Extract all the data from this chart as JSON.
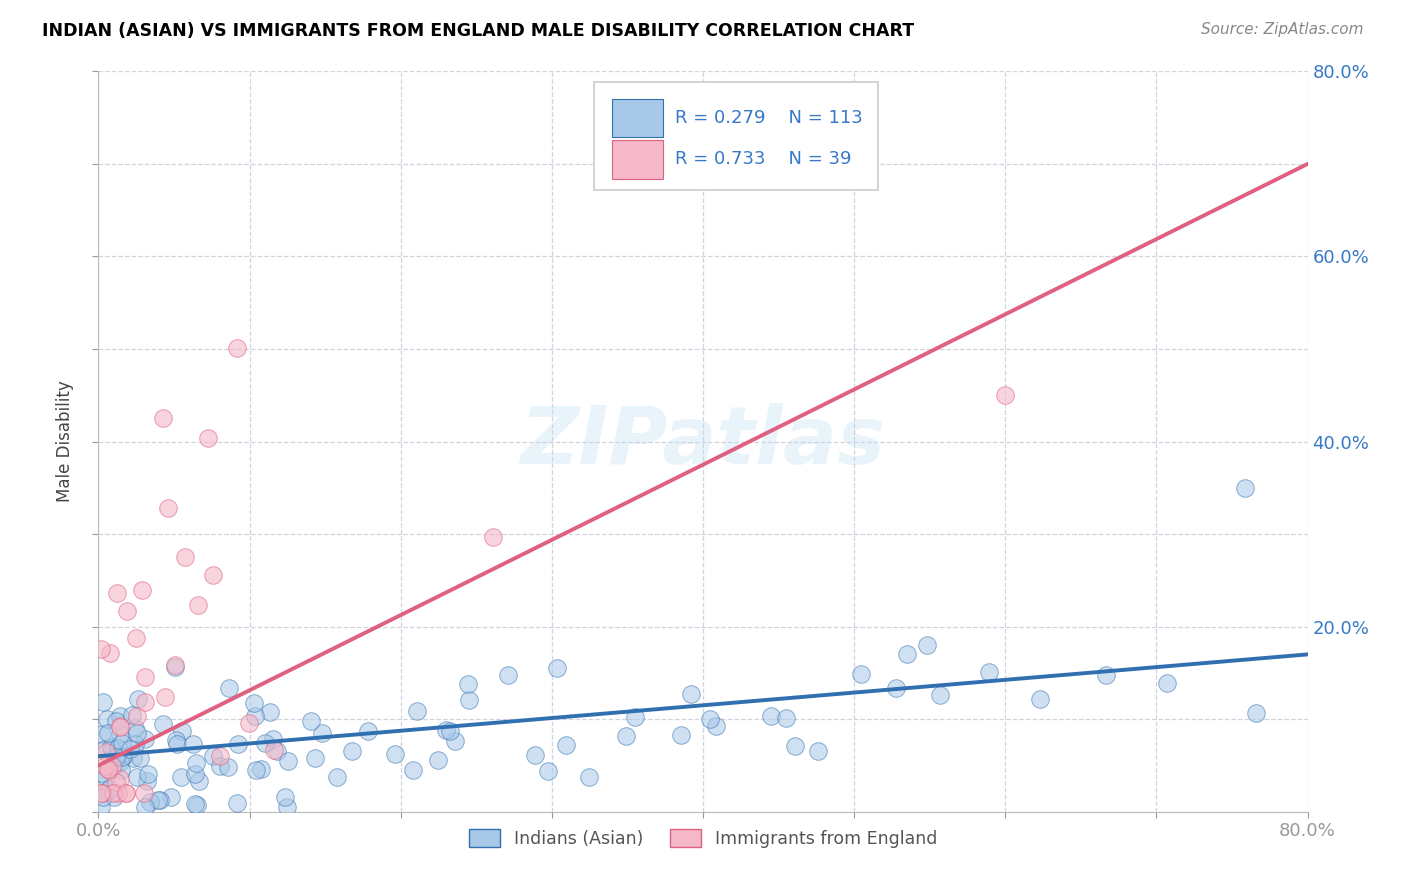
{
  "title": "INDIAN (ASIAN) VS IMMIGRANTS FROM ENGLAND MALE DISABILITY CORRELATION CHART",
  "source": "Source: ZipAtlas.com",
  "ylabel": "Male Disability",
  "legend_label_1": "Indians (Asian)",
  "legend_label_2": "Immigrants from England",
  "r1": 0.279,
  "n1": 113,
  "r2": 0.733,
  "n2": 39,
  "color_blue": "#a8c8e8",
  "color_pink": "#f4b8c8",
  "color_blue_line": "#3070b0",
  "color_pink_line": "#e06080",
  "color_text_blue": "#3878c8",
  "xmin": 0.0,
  "xmax": 0.8,
  "ymin": 0.0,
  "ymax": 0.8,
  "watermark": "ZIPatlas",
  "background_color": "#ffffff",
  "grid_color": "#c8c8d8"
}
